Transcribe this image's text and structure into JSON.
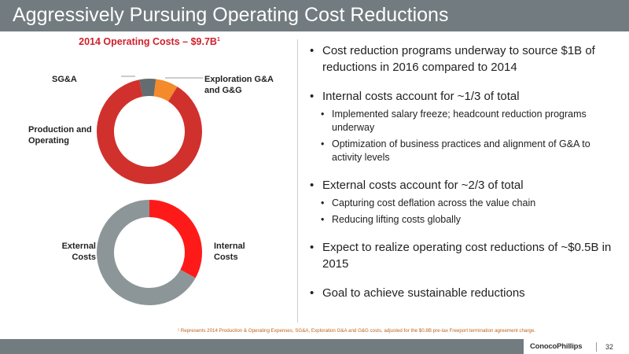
{
  "slide": {
    "title": "Aggressively Pursuing Operating Cost Reductions",
    "page_number": "32",
    "logo_text": "ConocoPhillips",
    "footnote": "¹ Represents 2014 Production & Operating Expenses, SG&A, Exploration G&A and G&G costs, adjusted for the $0.8B pre-tax Freeport termination agreement charge."
  },
  "chart_data": [
    {
      "type": "pie",
      "title": "2014 Operating Costs – $9.7B",
      "title_sup": "1",
      "series": [
        {
          "name": "Production and Operating",
          "value": 88,
          "color": "#d0312d"
        },
        {
          "name": "SG&A",
          "value": 5,
          "color": "#636c70"
        },
        {
          "name": "Exploration G&A and G&G",
          "value": 7,
          "color": "#f58a2a"
        }
      ]
    },
    {
      "type": "pie",
      "series": [
        {
          "name": "Internal Costs",
          "value": 33,
          "color": "#ff1a1a"
        },
        {
          "name": "External Costs",
          "value": 67,
          "color": "#8c9699"
        }
      ]
    }
  ],
  "labels": {
    "sga": "SG&A",
    "exploration_line1": "Exploration G&A",
    "exploration_line2": "and G&G",
    "production_line1": "Production and",
    "production_line2": "Operating",
    "external_line1": "External",
    "external_line2": "Costs",
    "internal_line1": "Internal",
    "internal_line2": "Costs"
  },
  "bullets": {
    "b1": "Cost reduction programs underway to source $1B of reductions in 2016 compared to 2014",
    "b2": "Internal costs account for ~1/3 of total",
    "b2_1": "Implemented salary freeze; headcount reduction programs underway",
    "b2_2": "Optimization of business practices and alignment of G&A to activity levels",
    "b3": "External costs account for ~2/3 of total",
    "b3_1": "Capturing cost deflation across the value chain",
    "b3_2": "Reducing lifting costs globally",
    "b4": "Expect to realize operating cost reductions of ~$0.5B in 2015",
    "b5": "Goal to achieve sustainable reductions"
  }
}
